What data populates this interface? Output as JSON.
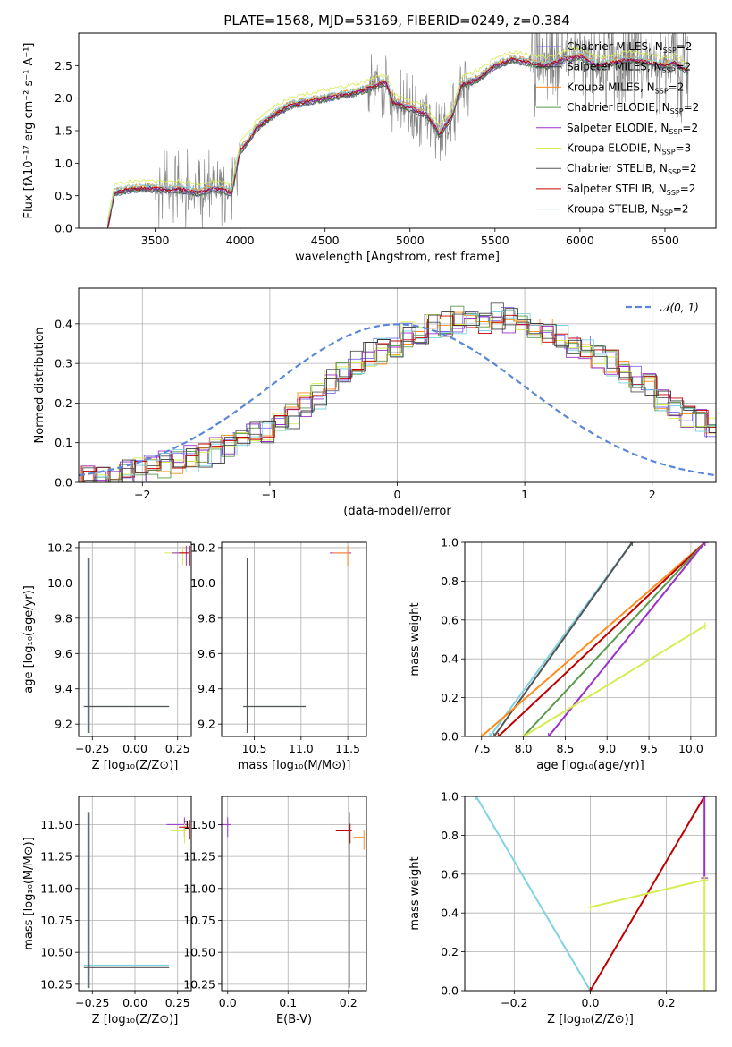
{
  "figure_title": "PLATE=1568, MJD=53169, FIBERID=0249, z=0.384",
  "colors": {
    "chabrier_miles": "#7b68ee",
    "salpeter_miles": "#3a3a3a",
    "kroupa_miles": "#ff8c1a",
    "chabrier_elodie": "#5a9a4a",
    "salpeter_elodie": "#9b30c8",
    "kroupa_elodie": "#d6ec50",
    "chabrier_stelib": "#555555",
    "salpeter_stelib": "#c00000",
    "kroupa_stelib": "#7fd3e0",
    "data": "#808080",
    "normal": "#5b87d6",
    "grid": "#b0b0b0"
  },
  "chart_data": [
    {
      "id": "spectrum",
      "type": "line",
      "xlabel": "wavelength [Angstrom, rest frame]",
      "ylabel": "Flux [fλ10⁻¹⁷ erg cm⁻² s⁻¹ A⁻¹]",
      "xlim": [
        3050,
        6800
      ],
      "ylim": [
        0,
        3.0
      ],
      "xticks": [
        "3500",
        "4000",
        "4500",
        "5000",
        "5500",
        "6000",
        "6500"
      ],
      "yticks": [
        "0.0",
        "0.5",
        "1.0",
        "1.5",
        "2.0",
        "2.5"
      ],
      "grid": false,
      "legend_position": "top-right",
      "legend": [
        {
          "label": "Chabrier MILES, N",
          "sub": "SSP",
          "post": "=2",
          "color_key": "chabrier_miles"
        },
        {
          "label": "Salpeter MILES, N",
          "sub": "SSP",
          "post": "=2",
          "color_key": "salpeter_miles"
        },
        {
          "label": "Kroupa MILES, N",
          "sub": "SSP",
          "post": "=2",
          "color_key": "kroupa_miles"
        },
        {
          "label": "Chabrier ELODIE, N",
          "sub": "SSP",
          "post": "=2",
          "color_key": "chabrier_elodie"
        },
        {
          "label": "Salpeter ELODIE, N",
          "sub": "SSP",
          "post": "=2",
          "color_key": "salpeter_elodie"
        },
        {
          "label": "Kroupa ELODIE, N",
          "sub": "SSP",
          "post": "=3",
          "color_key": "kroupa_elodie"
        },
        {
          "label": "Chabrier STELIB, N",
          "sub": "SSP",
          "post": "=2",
          "color_key": "chabrier_stelib"
        },
        {
          "label": "Salpeter STELIB, N",
          "sub": "SSP",
          "post": "=2",
          "color_key": "salpeter_stelib"
        },
        {
          "label": "Kroupa STELIB, N",
          "sub": "SSP",
          "post": "=2",
          "color_key": "kroupa_stelib"
        }
      ],
      "model_continuum": {
        "x": [
          3220,
          3260,
          3350,
          3450,
          3550,
          3650,
          3750,
          3850,
          3950,
          4000,
          4050,
          4100,
          4200,
          4300,
          4400,
          4500,
          4600,
          4700,
          4800,
          4860,
          4900,
          5000,
          5100,
          5175,
          5250,
          5300,
          5400,
          5500,
          5600,
          5700,
          5800,
          5900,
          6000,
          6100,
          6200,
          6300,
          6400,
          6500,
          6560,
          6640
        ],
        "y": [
          0.0,
          0.55,
          0.6,
          0.62,
          0.6,
          0.6,
          0.55,
          0.62,
          0.55,
          1.2,
          1.35,
          1.55,
          1.75,
          1.9,
          1.95,
          2.0,
          2.05,
          2.1,
          2.2,
          2.25,
          1.95,
          1.85,
          1.75,
          1.45,
          1.75,
          2.2,
          2.3,
          2.5,
          2.6,
          2.55,
          2.5,
          2.6,
          2.65,
          2.5,
          2.55,
          2.6,
          2.55,
          2.5,
          2.55,
          2.4
        ]
      }
    },
    {
      "id": "residuals",
      "type": "bar",
      "xlabel": "(data-model)/error",
      "ylabel": "Normed distribution",
      "xlim": [
        -2.5,
        2.5
      ],
      "ylim": [
        0,
        0.49
      ],
      "xticks": [
        "−2",
        "−1",
        "0",
        "1",
        "2"
      ],
      "yticks": [
        "0.0",
        "0.1",
        "0.2",
        "0.3",
        "0.4"
      ],
      "grid": true,
      "legend_position": "top-right",
      "legend_label": "𝒩(0, 1)",
      "bin_start": -2.5,
      "bin_width": 0.1,
      "histogram_reference": [
        0.01,
        0.015,
        0.02,
        0.025,
        0.03,
        0.035,
        0.045,
        0.05,
        0.06,
        0.07,
        0.08,
        0.09,
        0.1,
        0.12,
        0.13,
        0.15,
        0.17,
        0.2,
        0.22,
        0.25,
        0.27,
        0.3,
        0.32,
        0.33,
        0.35,
        0.37,
        0.38,
        0.39,
        0.4,
        0.41,
        0.4,
        0.41,
        0.42,
        0.41,
        0.4,
        0.39,
        0.38,
        0.37,
        0.35,
        0.34,
        0.32,
        0.3,
        0.28,
        0.26,
        0.24,
        0.21,
        0.19,
        0.17,
        0.15,
        0.13
      ]
    },
    {
      "id": "age_vs_Z",
      "type": "scatter",
      "xlabel": "Z [log₁₀(Z/Z⊙)]",
      "ylabel": "age  [log₁₀(age/yr)]",
      "xlim": [
        -0.33,
        0.33
      ],
      "ylim": [
        9.13,
        10.23
      ],
      "xticks": [
        "−0.25",
        "0.00",
        "0.25"
      ],
      "yticks": [
        "9.2",
        "9.4",
        "9.6",
        "9.8",
        "10.0",
        "10.2"
      ],
      "grid": true,
      "points": [
        {
          "x": 0.28,
          "y": 10.17,
          "color_key": "kroupa_elodie"
        },
        {
          "x": 0.29,
          "y": 10.17,
          "color_key": "salpeter_elodie"
        },
        {
          "x": 0.3,
          "y": 10.17,
          "color_key": "salpeter_stelib"
        },
        {
          "x": -0.3,
          "y": 9.3,
          "color_key": "kroupa_stelib"
        },
        {
          "x": -0.3,
          "y": 9.3,
          "color_key": "chabrier_stelib"
        }
      ]
    },
    {
      "id": "age_vs_mass",
      "type": "scatter",
      "xlabel": "mass [log₁₀(M/M⊙)]",
      "ylabel": "",
      "xlim": [
        10.15,
        11.7
      ],
      "ylim": [
        9.13,
        10.23
      ],
      "xticks": [
        "10.5",
        "11.0",
        "11.5"
      ],
      "yticks": [
        "9.2",
        "9.4",
        "9.6",
        "9.8",
        "10.0",
        "10.2"
      ],
      "grid": true,
      "points": [
        {
          "x": 11.5,
          "y": 10.17,
          "color_key": "salpeter_elodie"
        },
        {
          "x": 11.48,
          "y": 10.17,
          "color_key": "kroupa_miles"
        },
        {
          "x": 10.4,
          "y": 9.3,
          "color_key": "kroupa_stelib"
        },
        {
          "x": 10.38,
          "y": 9.3,
          "color_key": "chabrier_stelib"
        }
      ]
    },
    {
      "id": "mass_weight_vs_age",
      "type": "line",
      "xlabel": "age  [log₁₀(age/yr)]",
      "ylabel": "mass weight",
      "xlim": [
        7.3,
        10.3
      ],
      "ylim": [
        0,
        1.0
      ],
      "xticks": [
        "7.5",
        "8.0",
        "8.5",
        "9.0",
        "9.5",
        "10.0"
      ],
      "yticks": [
        "0.0",
        "0.2",
        "0.4",
        "0.6",
        "0.8",
        "1.0"
      ],
      "grid": true,
      "series": [
        {
          "color_key": "kroupa_stelib",
          "x": [
            7.6,
            9.3
          ],
          "y": [
            0.0,
            1.0
          ]
        },
        {
          "color_key": "chabrier_stelib",
          "x": [
            7.65,
            9.3
          ],
          "y": [
            0.0,
            1.0
          ]
        },
        {
          "color_key": "kroupa_miles",
          "x": [
            7.5,
            10.17
          ],
          "y": [
            0.0,
            1.0
          ]
        },
        {
          "color_key": "salpeter_stelib",
          "x": [
            7.7,
            10.17
          ],
          "y": [
            0.0,
            1.0
          ]
        },
        {
          "color_key": "chabrier_elodie",
          "x": [
            8.0,
            10.17
          ],
          "y": [
            0.0,
            1.0
          ]
        },
        {
          "color_key": "salpeter_elodie",
          "x": [
            8.3,
            10.17
          ],
          "y": [
            0.0,
            1.0
          ]
        },
        {
          "color_key": "kroupa_elodie",
          "x": [
            8.0,
            10.17
          ],
          "y": [
            0.0,
            0.57
          ]
        }
      ]
    },
    {
      "id": "mass_vs_Z",
      "type": "scatter",
      "xlabel": "Z [log₁₀(Z/Z⊙)]",
      "ylabel": "mass [log₁₀(M/M⊙)]",
      "xlim": [
        -0.33,
        0.33
      ],
      "ylim": [
        10.2,
        11.72
      ],
      "xticks": [
        "−0.25",
        "0.00",
        "0.25"
      ],
      "yticks": [
        "10.25",
        "10.50",
        "10.75",
        "11.00",
        "11.25",
        "11.50"
      ],
      "grid": true,
      "points": [
        {
          "x": 0.29,
          "y": 11.5,
          "color_key": "salpeter_elodie"
        },
        {
          "x": 0.28,
          "y": 11.45,
          "color_key": "kroupa_elodie"
        },
        {
          "x": 0.3,
          "y": 11.48,
          "color_key": "salpeter_stelib"
        },
        {
          "x": -0.3,
          "y": 10.4,
          "color_key": "kroupa_stelib"
        },
        {
          "x": -0.3,
          "y": 10.38,
          "color_key": "chabrier_stelib"
        }
      ]
    },
    {
      "id": "mass_vs_ebv",
      "type": "scatter",
      "xlabel": "E(B-V)",
      "ylabel": "",
      "xlim": [
        -0.01,
        0.23
      ],
      "ylim": [
        10.2,
        11.72
      ],
      "xticks": [
        "0.0",
        "0.1",
        "0.2"
      ],
      "yticks": [
        "10.25",
        "10.50",
        "10.75",
        "11.00",
        "11.25",
        "11.50"
      ],
      "grid": true,
      "points": [
        {
          "x": 0.0,
          "y": 11.5,
          "color_key": "salpeter_elodie"
        },
        {
          "x": 0.2,
          "y": 11.45,
          "color_key": "salpeter_stelib"
        },
        {
          "x": 0.22,
          "y": 11.4,
          "color_key": "kroupa_miles"
        },
        {
          "x": 0.195,
          "y": 10.5,
          "color_key": "chabrier_stelib"
        }
      ]
    },
    {
      "id": "mass_weight_vs_Z",
      "type": "line",
      "xlabel": "Z [log₁₀(Z/Z⊙)]",
      "ylabel": "mass weight",
      "xlim": [
        -0.33,
        0.33
      ],
      "ylim": [
        0,
        1.0
      ],
      "xticks": [
        "−0.2",
        "0.0",
        "0.2"
      ],
      "yticks": [
        "0.0",
        "0.2",
        "0.4",
        "0.6",
        "0.8",
        "1.0"
      ],
      "grid": true,
      "series": [
        {
          "color_key": "kroupa_stelib",
          "x": [
            -0.3,
            0.0
          ],
          "y": [
            1.0,
            0.0
          ]
        },
        {
          "color_key": "salpeter_stelib",
          "x": [
            0.0,
            0.3
          ],
          "y": [
            0.0,
            1.0
          ]
        },
        {
          "color_key": "salpeter_elodie",
          "x": [
            0.3,
            0.3
          ],
          "y": [
            0.58,
            1.0
          ]
        },
        {
          "color_key": "kroupa_elodie",
          "x": [
            0.0,
            0.3
          ],
          "y": [
            0.43,
            0.57
          ]
        },
        {
          "color_key": "kroupa_elodie",
          "x": [
            0.3,
            0.3
          ],
          "y": [
            0.0,
            0.57
          ]
        }
      ]
    }
  ]
}
